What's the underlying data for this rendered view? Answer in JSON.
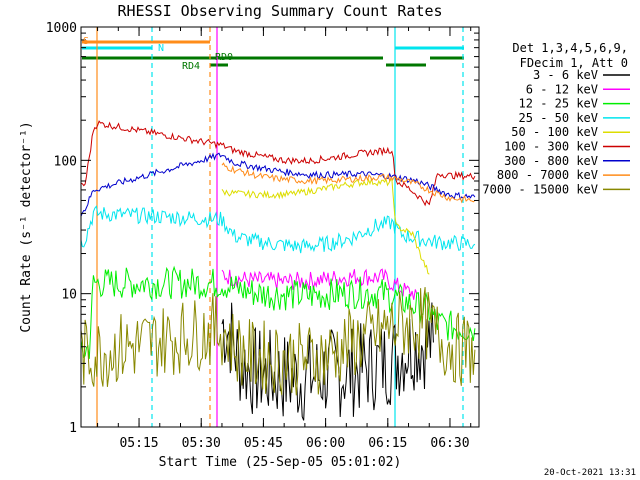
{
  "chart_data": {
    "type": "line",
    "title": "RHESSI Observing Summary Count Rates",
    "xlabel": "Start Time (25-Sep-05 05:01:02)",
    "ylabel": "Count Rate (s⁻¹ detector⁻¹)",
    "yscale": "log",
    "xlim": [
      "05:01",
      "06:37"
    ],
    "ylim": [
      1,
      1000
    ],
    "x_ticks": [
      "05:15",
      "05:30",
      "05:45",
      "06:00",
      "06:15",
      "06:30"
    ],
    "y_ticks": [
      "1",
      "10",
      "100",
      "1000"
    ],
    "timestamp": "20-Oct-2021 13:31",
    "legend": {
      "placement": "right",
      "header": [
        "Det 1,3,4,5,6,9,",
        "FDecim 1, Att 0"
      ]
    },
    "flags": [
      {
        "label": "S",
        "color": "#ff8c1a"
      },
      {
        "label": "N",
        "color": "#00e5ee"
      },
      {
        "label": "RD0",
        "color": "#007700"
      },
      {
        "label": "RD4",
        "color": "#007700"
      }
    ],
    "series": [
      {
        "name": "3 - 6 keV",
        "color": "#000000",
        "points": [
          [
            "05:35",
            6
          ],
          [
            "05:37",
            5
          ],
          [
            "05:39",
            3.2
          ],
          [
            "05:42",
            2.6
          ],
          [
            "05:48",
            2.4
          ],
          [
            "05:54",
            2.3
          ],
          [
            "06:00",
            2.5
          ],
          [
            "06:06",
            2.6
          ],
          [
            "06:12",
            2.9
          ],
          [
            "06:16",
            3.2
          ],
          [
            "06:21",
            4.2
          ],
          [
            "06:26",
            4.3
          ]
        ]
      },
      {
        "name": "6 - 12 keV",
        "color": "#ff00ff",
        "points": [
          [
            "05:35",
            14
          ],
          [
            "05:38",
            13
          ],
          [
            "05:44",
            12.5
          ],
          [
            "05:50",
            12.3
          ],
          [
            "05:56",
            12.5
          ],
          [
            "06:02",
            13
          ],
          [
            "06:08",
            13.5
          ],
          [
            "06:14",
            13.2
          ],
          [
            "06:17",
            11.5
          ],
          [
            "06:19",
            10.5
          ],
          [
            "06:22",
            10
          ]
        ]
      },
      {
        "name": "12 - 25 keV",
        "color": "#00ee00",
        "points": [
          [
            "05:01",
            3.5
          ],
          [
            "05:03",
            4
          ],
          [
            "05:04",
            12
          ],
          [
            "05:35",
            12
          ],
          [
            "05:38",
            11
          ],
          [
            "05:44",
            10
          ],
          [
            "05:50",
            9.8
          ],
          [
            "05:56",
            9.7
          ],
          [
            "06:02",
            10
          ],
          [
            "06:08",
            10.2
          ],
          [
            "06:14",
            10
          ],
          [
            "06:18",
            9
          ],
          [
            "06:22",
            8
          ],
          [
            "06:25",
            7.5
          ],
          [
            "06:27",
            6
          ],
          [
            "06:32",
            5.5
          ],
          [
            "06:36",
            5.5
          ]
        ]
      },
      {
        "name": "25 - 50 keV",
        "color": "#00e5ee",
        "points": [
          [
            "05:01",
            24
          ],
          [
            "05:02",
            26
          ],
          [
            "05:04",
            40
          ],
          [
            "05:35",
            36
          ],
          [
            "05:38",
            27
          ],
          [
            "05:42",
            25
          ],
          [
            "05:48",
            23.5
          ],
          [
            "05:54",
            22.5
          ],
          [
            "06:00",
            23.5
          ],
          [
            "06:06",
            26
          ],
          [
            "06:12",
            32
          ],
          [
            "06:16",
            34
          ],
          [
            "06:18",
            28
          ],
          [
            "06:22",
            26
          ],
          [
            "06:26",
            24.5
          ],
          [
            "06:30",
            24
          ],
          [
            "06:36",
            23.5
          ]
        ]
      },
      {
        "name": "50 - 100 keV",
        "color": "#dddd00",
        "points": [
          [
            "05:35",
            58
          ],
          [
            "05:40",
            56
          ],
          [
            "05:46",
            55
          ],
          [
            "05:52",
            56
          ],
          [
            "05:58",
            60
          ],
          [
            "06:04",
            65
          ],
          [
            "06:10",
            69
          ],
          [
            "06:16",
            68
          ],
          [
            "06:17",
            32
          ],
          [
            "06:21",
            28
          ],
          [
            "06:23",
            19
          ],
          [
            "06:25",
            14
          ]
        ]
      },
      {
        "name": "100 - 300 keV",
        "color": "#cc0000",
        "points": [
          [
            "05:01",
            64
          ],
          [
            "05:02",
            66
          ],
          [
            "05:04",
            170
          ],
          [
            "05:05",
            190
          ],
          [
            "05:35",
            130
          ],
          [
            "05:38",
            118
          ],
          [
            "05:44",
            108
          ],
          [
            "05:50",
            100
          ],
          [
            "05:56",
            99
          ],
          [
            "06:02",
            105
          ],
          [
            "06:08",
            112
          ],
          [
            "06:14",
            118
          ],
          [
            "06:16",
            120
          ],
          [
            "06:17",
            70
          ],
          [
            "06:20",
            62
          ],
          [
            "06:23",
            52
          ],
          [
            "06:25",
            46
          ],
          [
            "06:27",
            80
          ],
          [
            "06:30",
            77
          ],
          [
            "06:36",
            76
          ]
        ]
      },
      {
        "name": "300 - 800 keV",
        "color": "#0000cc",
        "points": [
          [
            "05:01",
            40
          ],
          [
            "05:02",
            43
          ],
          [
            "05:04",
            60
          ],
          [
            "05:35",
            110
          ],
          [
            "05:38",
            96
          ],
          [
            "05:44",
            88
          ],
          [
            "05:50",
            82
          ],
          [
            "05:56",
            78
          ],
          [
            "06:02",
            78
          ],
          [
            "06:08",
            79
          ],
          [
            "06:14",
            77
          ],
          [
            "06:18",
            74
          ],
          [
            "06:22",
            70
          ],
          [
            "06:26",
            62
          ],
          [
            "06:30",
            55
          ],
          [
            "06:36",
            53
          ]
        ]
      },
      {
        "name": "800 - 7000 keV",
        "color": "#ff8c1a",
        "points": [
          [
            "05:35",
            92
          ],
          [
            "05:38",
            85
          ],
          [
            "05:44",
            76
          ],
          [
            "05:50",
            72
          ],
          [
            "05:56",
            70
          ],
          [
            "06:02",
            71
          ],
          [
            "06:08",
            73
          ],
          [
            "06:14",
            75
          ],
          [
            "06:18",
            72
          ],
          [
            "06:22",
            66
          ],
          [
            "06:26",
            58
          ],
          [
            "06:30",
            52
          ],
          [
            "06:36",
            50
          ]
        ]
      },
      {
        "name": "7000 - 15000 keV",
        "color": "#888800",
        "points": [
          [
            "05:01",
            3.5
          ],
          [
            "05:03",
            3.5
          ],
          [
            "05:35",
            5.5
          ],
          [
            "05:38",
            4
          ],
          [
            "05:42",
            3.4
          ],
          [
            "05:48",
            3.3
          ],
          [
            "05:54",
            3.2
          ],
          [
            "06:00",
            3.4
          ],
          [
            "06:06",
            4.2
          ],
          [
            "06:12",
            5
          ],
          [
            "06:16",
            5.6
          ],
          [
            "06:20",
            6
          ],
          [
            "06:24",
            6
          ],
          [
            "06:28",
            4.5
          ],
          [
            "06:32",
            3.8
          ],
          [
            "06:36",
            3.8
          ]
        ]
      }
    ]
  }
}
